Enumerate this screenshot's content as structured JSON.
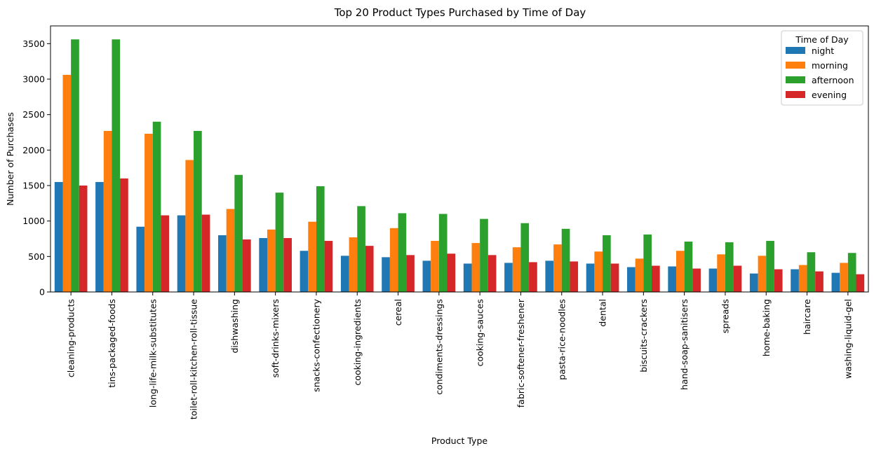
{
  "chart_data": {
    "type": "bar",
    "title": "Top 20 Product Types Purchased by Time of Day",
    "xlabel": "Product Type",
    "ylabel": "Number of Purchases",
    "ylim": [
      0,
      3750
    ],
    "yticks": [
      0,
      500,
      1000,
      1500,
      2000,
      2500,
      3000,
      3500
    ],
    "grid": false,
    "legend": {
      "title": "Time of Day",
      "placement": "top-right"
    },
    "categories": [
      "cleaning-products",
      "tins-packaged-foods",
      "long-life-milk-substitutes",
      "toilet-roll-kitchen-roll-tissue",
      "dishwashing",
      "soft-drinks-mixers",
      "snacks-confectionery",
      "cooking-ingredients",
      "cereal",
      "condiments-dressings",
      "cooking-sauces",
      "fabric-softener-freshener",
      "pasta-rice-noodles",
      "dental",
      "biscuits-crackers",
      "hand-soap-sanitisers",
      "spreads",
      "home-baking",
      "haircare",
      "washing-liquid-gel"
    ],
    "series": [
      {
        "name": "night",
        "color": "#1f77b4",
        "values": [
          1550,
          1550,
          920,
          1080,
          800,
          760,
          580,
          510,
          490,
          440,
          400,
          410,
          440,
          400,
          350,
          360,
          330,
          260,
          320,
          270
        ]
      },
      {
        "name": "morning",
        "color": "#ff7f0e",
        "values": [
          3060,
          2270,
          2230,
          1860,
          1170,
          880,
          990,
          770,
          900,
          720,
          690,
          630,
          670,
          570,
          470,
          580,
          530,
          510,
          380,
          410
        ]
      },
      {
        "name": "afternoon",
        "color": "#2ca02c",
        "values": [
          3560,
          3560,
          2400,
          2270,
          1650,
          1400,
          1490,
          1210,
          1110,
          1100,
          1030,
          970,
          890,
          800,
          810,
          710,
          700,
          720,
          560,
          550
        ]
      },
      {
        "name": "evening",
        "color": "#d62728",
        "values": [
          1500,
          1600,
          1080,
          1090,
          740,
          760,
          720,
          650,
          520,
          540,
          520,
          420,
          430,
          400,
          370,
          330,
          370,
          320,
          290,
          250
        ]
      }
    ]
  }
}
